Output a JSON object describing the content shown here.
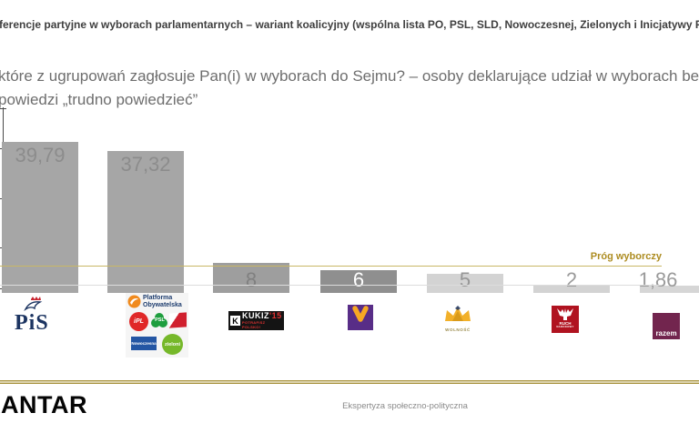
{
  "header": {
    "title": "ferencje partyjne w wyborach parlamentarnych – wariant koalicyjny (wspólna lista PO, PSL, SLD, Nowoczesnej, Zielonych i Inicjatywy Polsk",
    "subtitle_line1": "które z ugrupowań zagłosuje Pan(i) w wyborach do Sejmu? – osoby deklarujące udział w wyborach bez",
    "subtitle_line2": "powiedzi „trudno powiedzieć”"
  },
  "chart_data": {
    "type": "bar",
    "categories": [
      "PiS",
      "Koalicja: PO, PSL, SLD, Nowoczesna, Zieloni, iPL",
      "Kukiz'15",
      "Wiosna",
      "Wolność",
      "Ruch Narodowy",
      "Razem"
    ],
    "values": [
      39.79,
      37.32,
      8,
      6,
      5,
      2,
      1.86
    ],
    "value_labels": [
      "39,79",
      "37,32",
      "8",
      "6",
      "5",
      "2",
      "1,86"
    ],
    "title": "Preferencje partyjne w wyborach parlamentarnych – wariant koalicyjny",
    "xlabel": "",
    "ylabel": "",
    "ylim": [
      0,
      48
    ],
    "grid": false,
    "legend_position": "none (party logos used as x-axis labels)",
    "threshold": {
      "label": "Próg wyborczy",
      "approx_value": 7
    },
    "bar_fills": [
      "#a6a6a6",
      "#a6a6a6",
      "#9e9e9e",
      "#8f8f8f",
      "#d3d3d3",
      "#d3d3d3",
      "#d6d6d6"
    ],
    "bar_label_colors": [
      "#8c8c8c",
      "#8c8c8c",
      "#808080",
      "#ffffff",
      "#969696",
      "#9a9a9a",
      "#9a9a9a"
    ]
  },
  "logos": {
    "pis": {
      "text": "PiS"
    },
    "coalition": {
      "po_name": "Platforma Obywatelska",
      "ipl": "iPL",
      "psl": "PSL",
      "nowoczesna": "Nowoczesna",
      "zieloni": "zieloni"
    },
    "kukiz": {
      "k": "K",
      "name": "KUKIZ",
      "year": "'15",
      "slogan": "POTRAFISZ POLSKO!"
    },
    "wolnosc": {
      "name": "WOLNOŚĆ"
    },
    "ruch": {
      "line1": "RUCH",
      "line2": "NARODOWY"
    },
    "razem": {
      "name": "razem"
    }
  },
  "footer": {
    "brand": "KANTAR",
    "caption": "Ekspertyza społeczno-polityczna"
  },
  "colors": {
    "threshold_line": "#c9b765",
    "threshold_text": "#ad8c21",
    "separator_gold": "#a6913a",
    "title_text": "#3f3f3f",
    "subtitle_text": "#6e6e6e",
    "axis": "#4a4a4a",
    "gridline": "#dcdcdc",
    "pis_navy": "#1c3461",
    "pis_red": "#c8232e",
    "po_orange": "#f08a1d",
    "po_navy": "#1d3c6e",
    "ipl_red": "#e02828",
    "psl_green": "#1e9e3e",
    "sld_red": "#d0202e",
    "nowoczesna_blue": "#2456a4",
    "zieloni_green": "#76b82a",
    "kukiz_black": "#141414",
    "kukiz_red": "#e03131",
    "wiosna_purple": "#582d87",
    "wiosna_yellow": "#f7a823",
    "wolnosc_gold": "#f2b029",
    "ruch_red": "#b01320",
    "razem_plum": "#72254e"
  }
}
